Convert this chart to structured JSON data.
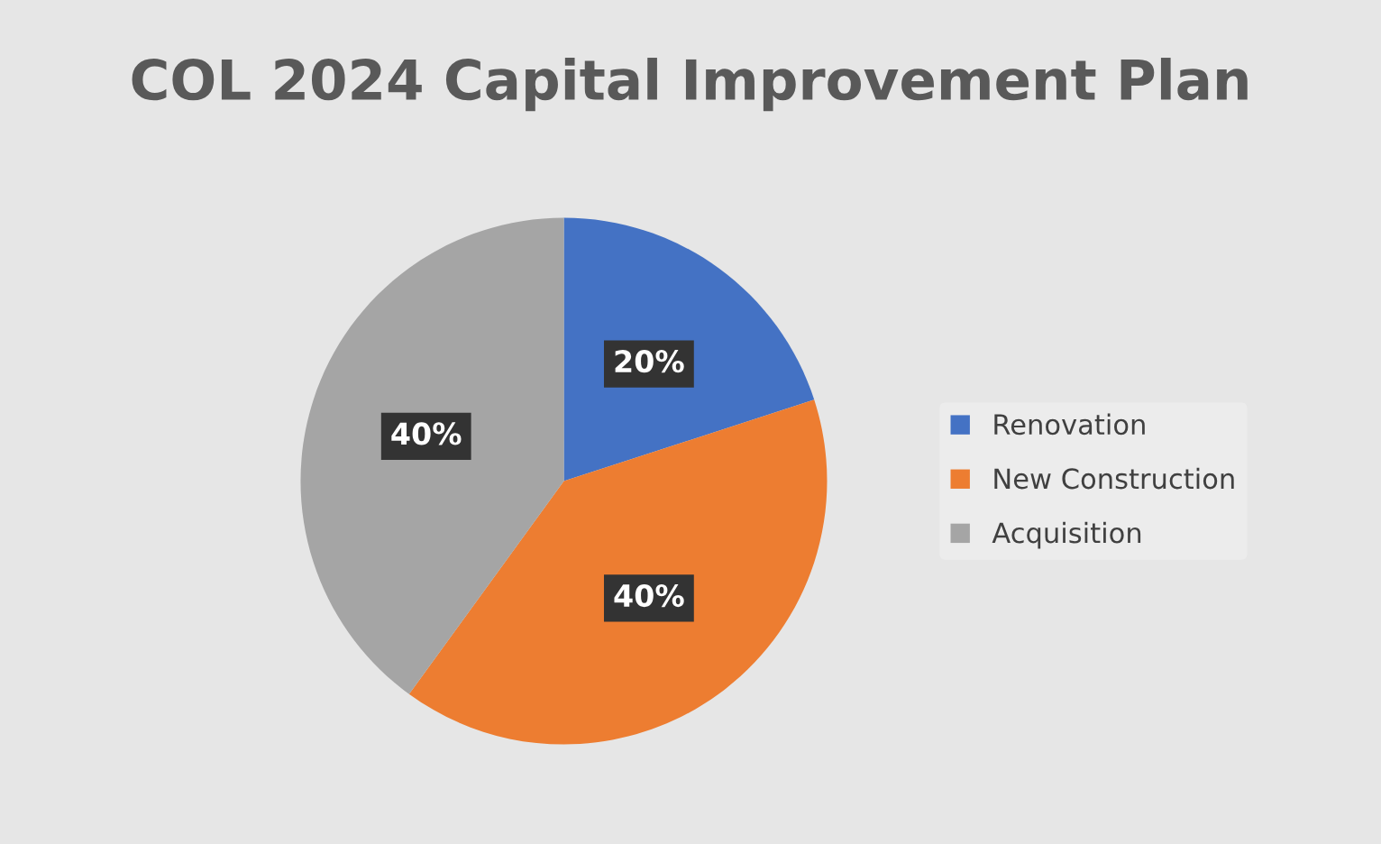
{
  "chart_data": {
    "type": "pie",
    "title": "COL 2024 Capital Improvement Plan",
    "categories": [
      "Renovation",
      "New Construction",
      "Acquisition"
    ],
    "values": [
      20,
      40,
      40
    ],
    "colors": [
      "#4472c4",
      "#ed7d31",
      "#a5a5a5"
    ],
    "value_labels": [
      "20%",
      "40%",
      "40%"
    ],
    "legend": "right"
  }
}
